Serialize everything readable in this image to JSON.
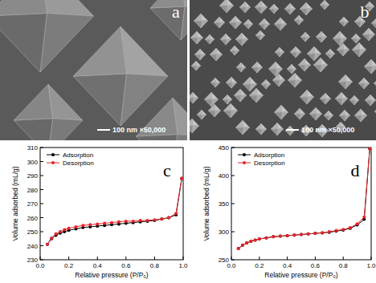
{
  "images": [
    {
      "label": "a",
      "scale_bar": "100 nm ×50,000"
    },
    {
      "label": "b",
      "scale_bar": "100 nm ×50,000"
    }
  ],
  "chart_data": [
    {
      "type": "line",
      "annotations": [
        "c"
      ],
      "x_label": "Relative pressure (P/P₀)",
      "y_label": "Volume adsorbed (mL/g)",
      "x": [
        0.05,
        0.08,
        0.11,
        0.14,
        0.17,
        0.2,
        0.25,
        0.3,
        0.35,
        0.4,
        0.45,
        0.5,
        0.55,
        0.6,
        0.65,
        0.7,
        0.75,
        0.8,
        0.85,
        0.9,
        0.95,
        0.99
      ],
      "series": [
        {
          "name": "Adsorption",
          "color": "#000000",
          "marker": "circle",
          "line_style": "solid",
          "values": [
            241,
            245,
            247.5,
            249,
            250,
            251,
            252,
            253,
            253.5,
            254,
            254.5,
            255,
            255.5,
            256,
            256.5,
            257,
            257.5,
            258,
            259,
            260,
            262,
            288
          ]
        },
        {
          "name": "Desorption",
          "color": "#e8242b",
          "marker": "circle",
          "line_style": "solid",
          "values": [
            241,
            245.5,
            248.5,
            250,
            251.5,
            252.5,
            253.5,
            254.5,
            255,
            255.5,
            256,
            256.5,
            257,
            257.5,
            257.5,
            258,
            258,
            258.5,
            259,
            260,
            263,
            288
          ]
        }
      ],
      "xlim": [
        0,
        1
      ],
      "xticks": [
        {
          "value": 0,
          "label": "0.0"
        },
        0.2,
        0.4,
        0.6,
        0.8,
        {
          "value": 1,
          "label": "1.0"
        }
      ],
      "ylim": [
        230,
        310
      ],
      "yticks": [
        230,
        240,
        250,
        260,
        270,
        280,
        290,
        300,
        310
      ],
      "legend": "upper-left",
      "grid": false
    },
    {
      "type": "line",
      "annotations": [
        "d"
      ],
      "x_label": "Relative pressure (P/P₀)",
      "y_label": "Volume adsorbed (mL/g)",
      "x": [
        0.05,
        0.08,
        0.11,
        0.14,
        0.17,
        0.2,
        0.25,
        0.3,
        0.35,
        0.4,
        0.45,
        0.5,
        0.55,
        0.6,
        0.65,
        0.7,
        0.75,
        0.8,
        0.85,
        0.9,
        0.95,
        0.99
      ],
      "series": [
        {
          "name": "Adsorption",
          "color": "#000000",
          "marker": "circle",
          "line_style": "solid",
          "values": [
            270,
            276,
            280,
            283,
            285,
            287,
            289,
            291,
            292,
            293,
            294,
            295,
            296,
            297,
            298,
            299,
            301,
            303,
            306,
            312,
            322,
            448
          ]
        },
        {
          "name": "Desorption",
          "color": "#e8242b",
          "marker": "circle",
          "line_style": "solid",
          "values": [
            270,
            276,
            280,
            283,
            285,
            287,
            289,
            291,
            292,
            293,
            294,
            295,
            296,
            297,
            298,
            300,
            302,
            304,
            307,
            314,
            326,
            448
          ]
        }
      ],
      "xlim": [
        0,
        1
      ],
      "xticks": [
        {
          "value": 0,
          "label": "0.0"
        },
        0.2,
        0.4,
        0.6,
        0.8,
        {
          "value": 1,
          "label": "1.0"
        }
      ],
      "ylim": [
        250,
        450
      ],
      "yticks": [
        250,
        300,
        350,
        400,
        450
      ],
      "legend": "upper-left",
      "grid": false
    }
  ]
}
